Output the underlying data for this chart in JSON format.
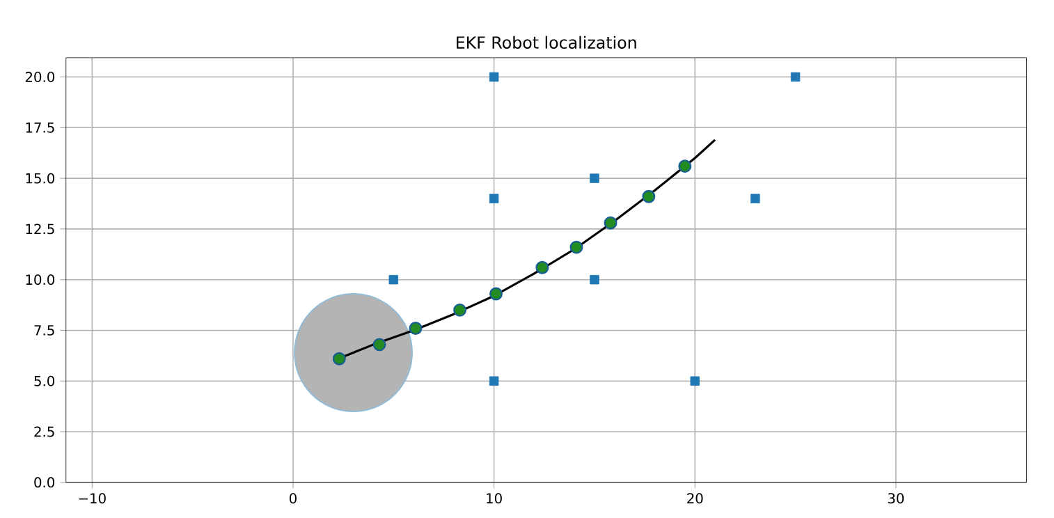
{
  "chart_data": {
    "type": "scatter",
    "title": "EKF Robot localization",
    "xlim": [
      -11.3,
      36.5
    ],
    "ylim": [
      0,
      20.95
    ],
    "xticks": [
      {
        "value": -10,
        "label": "−10"
      },
      0,
      10,
      20,
      30
    ],
    "yticks": [
      {
        "value": 0,
        "label": "0.0"
      },
      {
        "value": 2.5,
        "label": "2.5"
      },
      {
        "value": 5,
        "label": "5.0"
      },
      {
        "value": 7.5,
        "label": "7.5"
      },
      {
        "value": 10,
        "label": "10.0"
      },
      {
        "value": 12.5,
        "label": "12.5"
      },
      {
        "value": 15,
        "label": "15.0"
      },
      {
        "value": 17.5,
        "label": "17.5"
      },
      {
        "value": 20,
        "label": "20.0"
      }
    ],
    "grid": true,
    "series": [
      {
        "type": "bubble",
        "color": "#b4b4b4",
        "x": [
          3
        ],
        "values": [
          6.4
        ],
        "sizes": [
          1
        ]
      },
      {
        "type": "line",
        "color": "#000000",
        "marker": "none",
        "x": [
          2,
          4,
          6,
          8,
          10,
          12,
          14,
          16,
          18,
          20,
          21
        ],
        "values": [
          6,
          6.8,
          7.5,
          8.3,
          9.2,
          10.3,
          11.5,
          12.9,
          14.4,
          16.0,
          16.9
        ]
      },
      {
        "color": "#228b22",
        "marker": "circle",
        "x": [
          2.3,
          4.3,
          6.1,
          8.3,
          10.1,
          12.4,
          14.1,
          15.8,
          17.7,
          19.5
        ],
        "values": [
          6.1,
          6.8,
          7.6,
          8.5,
          9.3,
          10.6,
          11.6,
          12.8,
          14.1,
          15.6
        ]
      },
      {
        "color": "#1f77b4",
        "marker": "square",
        "x": [
          5,
          10,
          15,
          10,
          15,
          20,
          23,
          10,
          25
        ],
        "values": [
          10,
          5,
          15,
          14,
          10,
          5,
          14,
          20,
          20
        ]
      }
    ]
  }
}
